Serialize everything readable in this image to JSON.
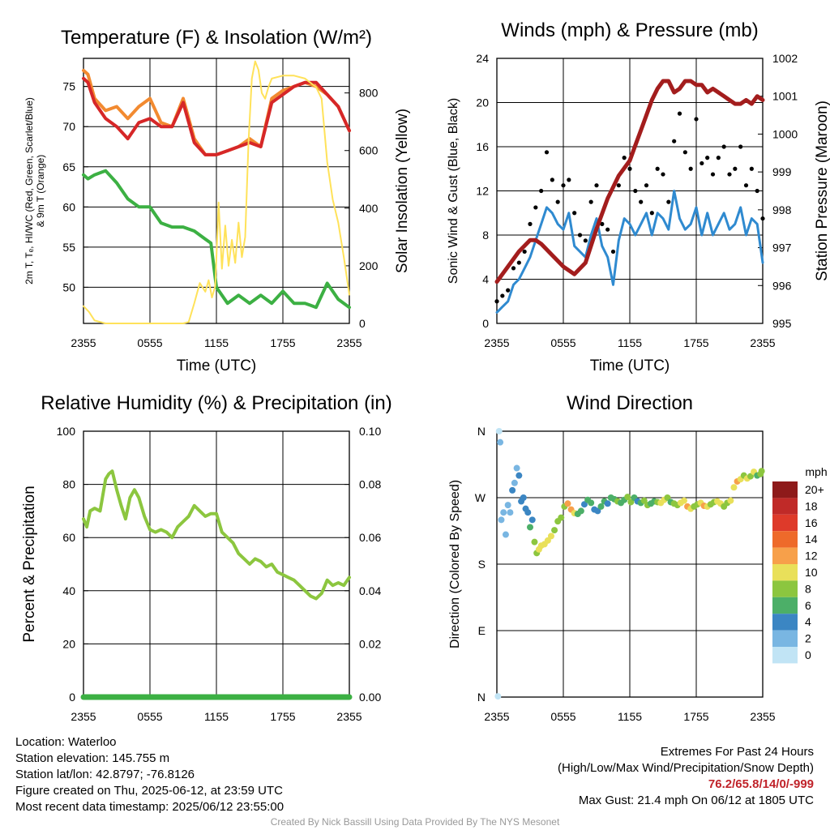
{
  "chart_data": [
    {
      "type": "line",
      "title": "Temperature (F) & Insolation (W/m²)",
      "xlabel": "Time (UTC)",
      "ylabel_left_lines": [
        "2m T, Tₑ, HI/WC (Red, Green, Scarlet/Blue)",
        "& 9m T (Orange)"
      ],
      "ylabel_right": "Solar Insolation (Yellow)",
      "x_ticks": [
        "2355",
        "0555",
        "1155",
        "1755",
        "2355"
      ],
      "ylim_left": [
        45.5,
        78.5
      ],
      "y_ticks_left": [
        50,
        55,
        60,
        65,
        70,
        75
      ],
      "ylim_right": [
        0,
        920
      ],
      "y_ticks_right": [
        0,
        200,
        400,
        600,
        800
      ],
      "grid": true,
      "series": [
        {
          "color": "#f28a30",
          "axis": "left",
          "x": [
            0,
            0.4,
            1,
            2,
            3,
            4,
            5,
            6,
            7,
            8,
            9,
            10,
            11,
            12,
            13,
            14,
            15,
            16,
            17,
            18,
            19,
            20,
            21,
            22,
            23,
            24
          ],
          "values": [
            77,
            76.5,
            73.5,
            72,
            72.5,
            71,
            72.5,
            73.5,
            70.5,
            70,
            73.5,
            68.5,
            66.5,
            66.5,
            67,
            67.5,
            68.5,
            67.5,
            73.5,
            74.5,
            75,
            75.5,
            75,
            74,
            72.5,
            69.5
          ]
        },
        {
          "color": "#d62728",
          "axis": "left",
          "x": [
            0,
            0.4,
            1,
            2,
            3,
            4,
            5,
            6,
            7,
            8,
            9,
            10,
            11,
            12,
            13,
            14,
            15,
            16,
            17,
            18,
            19,
            20,
            21,
            22,
            23,
            24
          ],
          "values": [
            76,
            75.5,
            73,
            71,
            70,
            68.5,
            70.5,
            71,
            70,
            70,
            73,
            68,
            66.5,
            66.5,
            67,
            67.5,
            68,
            67.5,
            73,
            74,
            75,
            75.5,
            75.5,
            74,
            72.5,
            69.5
          ]
        },
        {
          "color": "#3cb043",
          "axis": "left",
          "x": [
            0,
            0.4,
            1,
            2,
            3,
            4,
            5,
            6,
            7,
            8,
            9,
            10,
            11,
            11.5,
            12,
            13,
            14,
            15,
            16,
            17,
            18,
            19,
            20,
            21,
            22,
            23,
            24
          ],
          "values": [
            64,
            63.5,
            64,
            64.5,
            63,
            61,
            60,
            60,
            58,
            57.5,
            57.5,
            57,
            56,
            55.5,
            50,
            48,
            49,
            48,
            49,
            48,
            49.5,
            48,
            48,
            47.5,
            50.5,
            48.5,
            47.5
          ]
        },
        {
          "color": "#ffe25a",
          "axis": "right",
          "x": [
            0,
            0.5,
            1,
            2,
            4,
            6,
            8,
            9,
            9.5,
            10,
            10.5,
            11,
            11.3,
            11.6,
            11.9,
            12.2,
            12.5,
            12.8,
            13.1,
            13.4,
            13.7,
            14,
            14.3,
            14.6,
            14.9,
            15.2,
            15.5,
            15.8,
            16.1,
            16.4,
            16.7,
            17,
            18,
            19,
            20,
            21,
            21.5,
            22,
            22.5,
            23,
            23.5,
            24
          ],
          "values": [
            60,
            40,
            10,
            0,
            0,
            0,
            0,
            0,
            5,
            70,
            140,
            110,
            150,
            90,
            130,
            420,
            190,
            340,
            200,
            290,
            210,
            350,
            230,
            300,
            630,
            850,
            910,
            880,
            800,
            780,
            820,
            850,
            860,
            860,
            850,
            820,
            780,
            560,
            430,
            350,
            230,
            100
          ]
        }
      ]
    },
    {
      "type": "line",
      "title": "Winds (mph) & Pressure (mb)",
      "xlabel": "Time (UTC)",
      "ylabel_left": "Sonic Wind & Gust (Blue, Black)",
      "ylabel_right": "Station Pressure (Maroon)",
      "x_ticks": [
        "2355",
        "0555",
        "1155",
        "1755",
        "2355"
      ],
      "ylim_left": [
        0,
        24
      ],
      "y_ticks_left": [
        0,
        4,
        8,
        12,
        16,
        20,
        24
      ],
      "ylim_right": [
        995,
        1002
      ],
      "y_ticks_right": [
        995,
        996,
        997,
        998,
        999,
        1000,
        1001,
        1002
      ],
      "grid": true,
      "series": [
        {
          "color": "#2f8ad0",
          "axis": "left",
          "x": [
            0,
            0.5,
            1,
            1.5,
            2,
            2.5,
            3,
            3.5,
            4,
            4.5,
            5,
            5.5,
            6,
            6.5,
            7,
            7.5,
            8,
            8.5,
            9,
            9.5,
            10,
            10.5,
            11,
            11.5,
            12,
            12.5,
            13,
            13.5,
            14,
            14.5,
            15,
            15.5,
            16,
            16.5,
            17,
            17.5,
            18,
            18.5,
            19,
            19.5,
            20,
            20.5,
            21,
            21.5,
            22,
            22.5,
            23,
            23.5,
            24
          ],
          "values": [
            1,
            1.5,
            2,
            3.5,
            4,
            5,
            6,
            7.5,
            9,
            10.5,
            10,
            9,
            8.5,
            10,
            7,
            6.5,
            6,
            8,
            9.5,
            7,
            6,
            3.5,
            7.5,
            9.5,
            9,
            8,
            9,
            10,
            8,
            10,
            9.5,
            8.5,
            12,
            9.5,
            8.5,
            9,
            10.5,
            8,
            10,
            8,
            9,
            10,
            8.5,
            9,
            10.5,
            8,
            9.5,
            9,
            5.5
          ]
        },
        {
          "color": "#000000",
          "axis": "left",
          "x": [
            0,
            0.5,
            1,
            1.5,
            2,
            2.5,
            3,
            3.5,
            4,
            4.5,
            5,
            5.5,
            6,
            6.5,
            7,
            7.5,
            8,
            8.5,
            9,
            9.5,
            10,
            10.5,
            11,
            11.5,
            12,
            12.5,
            13,
            13.5,
            14,
            14.5,
            15,
            15.5,
            16,
            16.5,
            17,
            17.5,
            18,
            18.5,
            19,
            19.5,
            20,
            20.5,
            21,
            21.5,
            22,
            22.5,
            23,
            23.5,
            24
          ],
          "values": [
            2,
            2.5,
            3,
            5,
            5.5,
            6.5,
            9,
            10.5,
            12,
            15.5,
            13,
            11,
            12.5,
            13,
            10,
            8,
            7.5,
            11,
            12.5,
            9,
            8.5,
            6.5,
            12.5,
            15,
            14,
            12,
            11,
            12.5,
            10,
            14,
            13.5,
            11,
            16.5,
            19,
            15.5,
            14,
            18.5,
            14.5,
            15,
            13.5,
            15,
            16,
            13.5,
            14,
            16,
            12.5,
            14,
            12,
            9.5
          ]
        },
        {
          "color": "#a31d1d",
          "axis": "right",
          "x": [
            0,
            0.5,
            1,
            2,
            3,
            3.5,
            4,
            5,
            6,
            7,
            8,
            9,
            10,
            11,
            12,
            12.5,
            13,
            13.5,
            14,
            14.5,
            15,
            15.5,
            16,
            16.5,
            17,
            17.5,
            18,
            18.5,
            19,
            19.5,
            20,
            20.5,
            21,
            21.5,
            22,
            22.5,
            23,
            23.5,
            24
          ],
          "values": [
            996.1,
            996.3,
            996.5,
            996.9,
            997.2,
            997.2,
            997.1,
            996.8,
            996.5,
            996.3,
            996.6,
            997.5,
            998.3,
            998.9,
            999.3,
            999.7,
            1000.1,
            1000.5,
            1000.9,
            1001.2,
            1001.4,
            1001.4,
            1001.1,
            1001.2,
            1001.4,
            1001.4,
            1001.3,
            1001.3,
            1001.1,
            1001.2,
            1001.1,
            1001,
            1000.9,
            1000.8,
            1000.8,
            1000.9,
            1000.8,
            1001,
            1000.9
          ]
        }
      ]
    },
    {
      "type": "line",
      "title": "Relative Humidity (%) & Precipitation (in)",
      "ylabel": "Percent & Precipitation",
      "x_ticks": [
        "2355",
        "0555",
        "1155",
        "1755",
        "2355"
      ],
      "ylim_left": [
        0,
        100
      ],
      "y_ticks_left": [
        "0",
        "20",
        "40",
        "60",
        "80",
        "100"
      ],
      "ylim_right": [
        0,
        0.1
      ],
      "y_ticks_right": [
        "0.00",
        "0.02",
        "0.04",
        "0.06",
        "0.08",
        "0.10"
      ],
      "grid": true,
      "series": [
        {
          "color": "#8cc63f",
          "axis": "left",
          "x": [
            0,
            0.3,
            0.6,
            1,
            1.5,
            2,
            2.3,
            2.6,
            3,
            3.4,
            3.8,
            4.2,
            4.6,
            5,
            5.5,
            6,
            6.5,
            7,
            7.5,
            8,
            8.5,
            9,
            9.5,
            10,
            10.5,
            11,
            11.5,
            12,
            12.5,
            13,
            13.5,
            14,
            14.5,
            15,
            15.5,
            16,
            16.5,
            17,
            17.5,
            18,
            18.5,
            19,
            19.5,
            20,
            20.5,
            21,
            21.5,
            22,
            22.5,
            23,
            23.5,
            24
          ],
          "values": [
            67,
            64,
            70,
            71,
            70,
            82,
            84,
            85,
            78,
            72,
            67,
            75,
            78,
            75,
            68,
            63,
            62,
            63,
            62,
            60,
            64,
            66,
            68,
            72,
            70,
            68,
            69,
            69,
            62,
            60,
            58,
            54,
            52,
            50,
            52,
            51,
            49,
            50,
            47,
            46,
            45,
            44,
            42,
            40,
            38,
            37,
            39,
            44,
            42,
            43,
            42,
            45
          ]
        },
        {
          "color": "#3cb043",
          "axis": "left",
          "x": [
            0,
            24
          ],
          "values": [
            0,
            0
          ]
        }
      ]
    },
    {
      "type": "scatter",
      "title": "Wind Direction",
      "ylabel": "Direction (Colored By Speed)",
      "x_ticks": [
        "2355",
        "0555",
        "1155",
        "1755",
        "2355"
      ],
      "y_ticks": [
        "N",
        "E",
        "S",
        "W",
        "N"
      ],
      "ylim": [
        0,
        360
      ],
      "grid": true,
      "legend_title": "mph",
      "legend_labels": [
        "20+",
        "18",
        "16",
        "14",
        "12",
        "10",
        "8",
        "6",
        "4",
        "2",
        "0"
      ],
      "legend_colors": [
        "#8e1a1a",
        "#c02a28",
        "#de3a2a",
        "#ee6a2a",
        "#f7a04a",
        "#e9e05a",
        "#8cc63f",
        "#4caf68",
        "#3b86c3",
        "#79b6e2",
        "#c1e4f5"
      ],
      "x": [
        0.1,
        0.2,
        0.3,
        0.4,
        0.6,
        0.8,
        1,
        1.2,
        1.4,
        1.6,
        1.8,
        2,
        2.2,
        2.4,
        2.6,
        2.8,
        3,
        3.2,
        3.4,
        3.6,
        3.8,
        4,
        4.3,
        4.6,
        4.9,
        5.2,
        5.5,
        5.8,
        6.1,
        6.4,
        6.7,
        7,
        7.3,
        7.6,
        7.9,
        8.2,
        8.5,
        8.8,
        9.1,
        9.4,
        9.7,
        10,
        10.3,
        10.6,
        10.9,
        11.2,
        11.5,
        11.8,
        12.1,
        12.4,
        12.7,
        13,
        13.3,
        13.6,
        13.9,
        14.2,
        14.5,
        14.8,
        15.1,
        15.4,
        15.7,
        16,
        16.3,
        16.6,
        16.9,
        17.2,
        17.5,
        17.8,
        18.1,
        18.4,
        18.7,
        19,
        19.3,
        19.6,
        19.9,
        20.2,
        20.5,
        20.8,
        21.1,
        21.4,
        21.7,
        22,
        22.3,
        22.6,
        22.9,
        23.2,
        23.5,
        23.8,
        23.9
      ],
      "values": [
        1,
        360,
        345,
        240,
        250,
        220,
        260,
        250,
        280,
        290,
        310,
        300,
        265,
        270,
        255,
        250,
        230,
        240,
        210,
        195,
        200,
        205,
        207,
        212,
        218,
        226,
        238,
        243,
        258,
        262,
        254,
        249,
        248,
        252,
        261,
        267,
        263,
        254,
        252,
        258,
        265,
        262,
        270,
        268,
        265,
        263,
        267,
        271,
        264,
        270,
        265,
        263,
        266,
        260,
        262,
        265,
        264,
        263,
        267,
        270,
        264,
        262,
        260,
        263,
        266,
        258,
        255,
        258,
        261,
        263,
        259,
        258,
        261,
        264,
        265,
        262,
        258,
        263,
        266,
        284,
        292,
        295,
        300,
        296,
        299,
        305,
        300,
        302,
        306
      ],
      "speeds": [
        0,
        0,
        1,
        1,
        2,
        2,
        1,
        2,
        3,
        1,
        2,
        3,
        4,
        3,
        4,
        4,
        5,
        4,
        7,
        8,
        9,
        9,
        10,
        10,
        9,
        8,
        7,
        7,
        7,
        11,
        12,
        10,
        6,
        5,
        4,
        5,
        6,
        4,
        3,
        5,
        6,
        4,
        5,
        6,
        7,
        5,
        6,
        7,
        8,
        5,
        4,
        6,
        7,
        8,
        6,
        5,
        7,
        9,
        10,
        8,
        6,
        7,
        8,
        9,
        10,
        11,
        9,
        8,
        7,
        10,
        11,
        9,
        8,
        7,
        9,
        10,
        8,
        7,
        9,
        10,
        11,
        9,
        8,
        10,
        7,
        9,
        6,
        8,
        7
      ]
    }
  ],
  "info": {
    "lines": [
      "Location: Waterloo",
      "Station elevation: 145.755 m",
      "Station lat/lon: 42.8797; -76.8126",
      "Figure created on Thu, 2025-06-12, at 23:59 UTC",
      "Most recent data timestamp: 2025/06/12 23:55:00"
    ]
  },
  "extremes": {
    "title": "Extremes For Past 24 Hours",
    "subtitle": "(High/Low/Max Wind/Precipitation/Snow Depth)",
    "values": "76.2/65.8/14/0/-999",
    "max_gust": "Max Gust: 21.4 mph On 06/12 at 1805 UTC"
  },
  "credit": "Created By Nick Bassill Using Data Provided By The NYS Mesonet"
}
